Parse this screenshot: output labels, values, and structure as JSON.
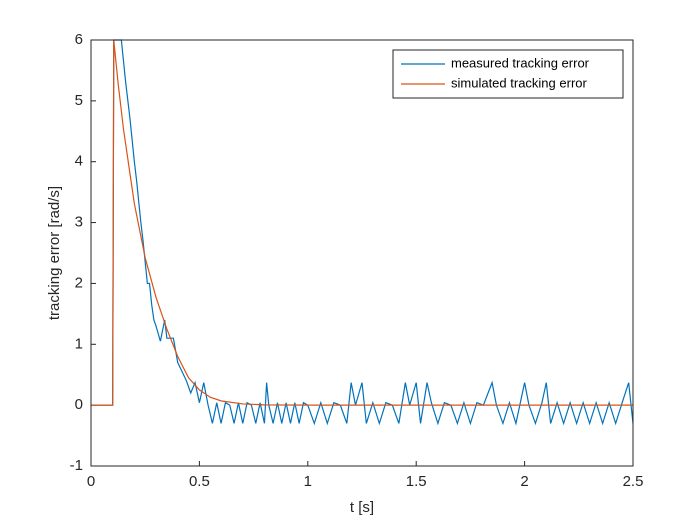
{
  "chart_data": {
    "type": "line",
    "xlabel": "t [s]",
    "ylabel": "tracking error [rad/s]",
    "xlim": [
      0,
      2.5
    ],
    "xticks": [
      0,
      0.5,
      1,
      1.5,
      2,
      2.5
    ],
    "ylim": [
      -1,
      6
    ],
    "yticks": [
      -1,
      0,
      1,
      2,
      3,
      4,
      5,
      6
    ],
    "legend": "upper right",
    "series": [
      {
        "name": "measured tracking error",
        "color": "#0072bd",
        "x": [
          0,
          0.1,
          0.105,
          0.14,
          0.15,
          0.16,
          0.17,
          0.18,
          0.19,
          0.2,
          0.21,
          0.22,
          0.23,
          0.24,
          0.25,
          0.26,
          0.27,
          0.28,
          0.29,
          0.3,
          0.32,
          0.34,
          0.35,
          0.38,
          0.4,
          0.42,
          0.44,
          0.46,
          0.48,
          0.5,
          0.52,
          0.54,
          0.56,
          0.58,
          0.6,
          0.62,
          0.64,
          0.66,
          0.68,
          0.7,
          0.72,
          0.74,
          0.76,
          0.78,
          0.8,
          0.81,
          0.82,
          0.84,
          0.86,
          0.88,
          0.9,
          0.92,
          0.94,
          0.96,
          0.98,
          1.0,
          1.03,
          1.06,
          1.09,
          1.12,
          1.15,
          1.18,
          1.2,
          1.22,
          1.25,
          1.27,
          1.3,
          1.33,
          1.36,
          1.39,
          1.42,
          1.45,
          1.47,
          1.5,
          1.52,
          1.55,
          1.57,
          1.6,
          1.63,
          1.66,
          1.69,
          1.72,
          1.75,
          1.78,
          1.81,
          1.85,
          1.87,
          1.9,
          1.93,
          1.96,
          2.0,
          2.02,
          2.05,
          2.08,
          2.1,
          2.12,
          2.15,
          2.18,
          2.21,
          2.24,
          2.27,
          2.3,
          2.33,
          2.36,
          2.39,
          2.42,
          2.45,
          2.48,
          2.5
        ],
        "values": [
          0,
          0,
          6,
          6,
          5.65,
          5.3,
          5.0,
          4.7,
          4.35,
          4.0,
          3.7,
          3.35,
          3.0,
          2.7,
          2.35,
          2.0,
          2.0,
          1.65,
          1.4,
          1.3,
          1.05,
          1.4,
          1.1,
          1.1,
          0.7,
          0.55,
          0.4,
          0.2,
          0.37,
          0.04,
          0.37,
          0,
          -0.3,
          0.04,
          -0.3,
          0.04,
          0,
          -0.3,
          0.04,
          -0.3,
          0.04,
          0,
          -0.3,
          0.04,
          -0.3,
          0.37,
          0,
          -0.3,
          0.04,
          -0.3,
          0.04,
          -0.3,
          0.04,
          -0.3,
          0.04,
          0,
          -0.3,
          0.04,
          -0.3,
          0.04,
          0,
          -0.3,
          0.37,
          0,
          0.37,
          -0.3,
          0.04,
          -0.3,
          0.04,
          0,
          -0.3,
          0.37,
          0,
          0.37,
          -0.3,
          0.37,
          0.04,
          -0.3,
          0.04,
          0,
          -0.3,
          0.04,
          -0.3,
          0.04,
          0,
          0.37,
          0,
          -0.3,
          0.04,
          -0.3,
          0.37,
          0,
          -0.3,
          0.04,
          0.37,
          -0.3,
          0.04,
          -0.3,
          0.04,
          -0.3,
          0.04,
          -0.3,
          0.04,
          -0.3,
          0.04,
          -0.3,
          0.04,
          0.37,
          -0.3
        ]
      },
      {
        "name": "simulated tracking error",
        "color": "#d95319",
        "x": [
          0,
          0.1,
          0.105,
          0.125,
          0.15,
          0.2,
          0.25,
          0.3,
          0.35,
          0.4,
          0.45,
          0.5,
          0.55,
          0.6,
          0.7,
          0.8,
          1.0,
          2.5
        ],
        "values": [
          0,
          0,
          6,
          5.29,
          4.53,
          3.31,
          2.42,
          1.77,
          1.25,
          0.8,
          0.45,
          0.25,
          0.13,
          0.07,
          0.02,
          0.005,
          0,
          0
        ]
      }
    ]
  }
}
